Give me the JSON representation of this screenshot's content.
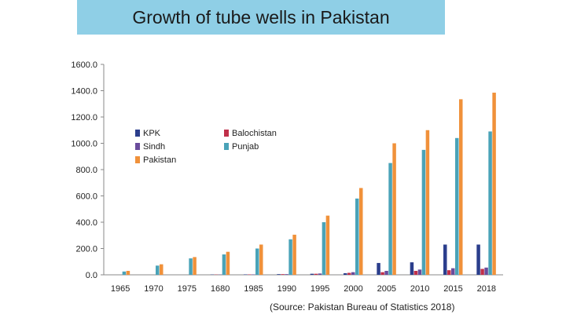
{
  "chart_data": {
    "type": "bar",
    "title": "Growth of tube wells in Pakistan",
    "source": "(Source: Pakistan Bureau of Statistics 2018)",
    "categories": [
      "1965",
      "1970",
      "1975",
      "1680",
      "1985",
      "1990",
      "1995",
      "2000",
      "2005",
      "2010",
      "2015",
      "2018"
    ],
    "ylim": [
      0,
      1600
    ],
    "yticks": [
      "0.0",
      "200.0",
      "400.0",
      "600.0",
      "800.0",
      "1000.0",
      "1200.0",
      "1400.0",
      "1600.0"
    ],
    "grid": false,
    "legend_position": "top-left",
    "series": [
      {
        "name": "KPK",
        "color": "#2b3e8c",
        "values": [
          0,
          0,
          0,
          2,
          3,
          5,
          8,
          12,
          90,
          95,
          230,
          230
        ]
      },
      {
        "name": "Balochistan",
        "color": "#c0304a",
        "values": [
          0,
          0,
          0,
          2,
          3,
          5,
          8,
          15,
          20,
          30,
          35,
          45
        ]
      },
      {
        "name": "Sindh",
        "color": "#6a4c9c",
        "values": [
          0,
          0,
          0,
          2,
          3,
          5,
          10,
          20,
          30,
          40,
          50,
          55
        ]
      },
      {
        "name": "Punjab",
        "color": "#4aa3b8",
        "values": [
          25,
          70,
          125,
          155,
          200,
          270,
          400,
          580,
          850,
          950,
          1040,
          1090
        ]
      },
      {
        "name": "Pakistan",
        "color": "#f0913a",
        "values": [
          30,
          80,
          135,
          175,
          230,
          305,
          450,
          660,
          1000,
          1100,
          1335,
          1385
        ]
      }
    ]
  }
}
